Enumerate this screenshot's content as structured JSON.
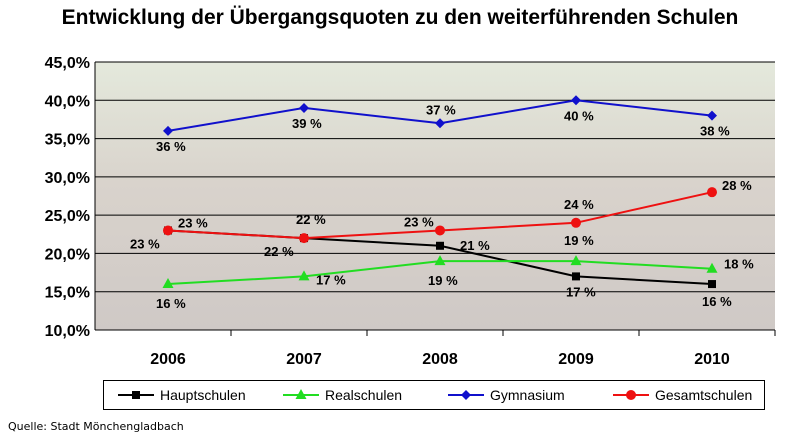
{
  "title": "Entwicklung der Übergangsquoten zu den weiterführenden Schulen",
  "source": "Quelle: Stadt Mönchengladbach",
  "colors": {
    "Hauptschulen": "#000000",
    "Realschulen": "#22dd22",
    "Gymnasium": "#1010cc",
    "Gesamtschulen": "#ee1111"
  },
  "chart_data": {
    "type": "line",
    "title": "Entwicklung der Übergangsquoten zu den weiterführenden Schulen",
    "categories": [
      "2006",
      "2007",
      "2008",
      "2009",
      "2010"
    ],
    "yticks": [
      "10,0%",
      "15,0%",
      "20,0%",
      "25,0%",
      "30,0%",
      "35,0%",
      "40,0%",
      "45,0%"
    ],
    "ylim": [
      10,
      45
    ],
    "grid": true,
    "legend": "bottom",
    "series": [
      {
        "name": "Hauptschulen",
        "values": [
          23,
          22,
          21,
          17,
          16
        ],
        "labels": [
          "23 %",
          "22 %",
          "21 %",
          "17 %",
          "16 %"
        ],
        "marker": "square"
      },
      {
        "name": "Realschulen",
        "values": [
          16,
          17,
          19,
          19,
          18
        ],
        "labels": [
          "16 %",
          "17 %",
          "19 %",
          "19 %",
          "18 %"
        ],
        "marker": "triangle"
      },
      {
        "name": "Gymnasium",
        "values": [
          36,
          39,
          37,
          40,
          38
        ],
        "labels": [
          "36 %",
          "39 %",
          "37 %",
          "40 %",
          "38 %"
        ],
        "marker": "diamond"
      },
      {
        "name": "Gesamtschulen",
        "values": [
          23,
          22,
          23,
          24,
          28
        ],
        "labels": [
          "23 %",
          "22 %",
          "23 %",
          "24 %",
          "28 %"
        ],
        "marker": "circle"
      }
    ]
  }
}
